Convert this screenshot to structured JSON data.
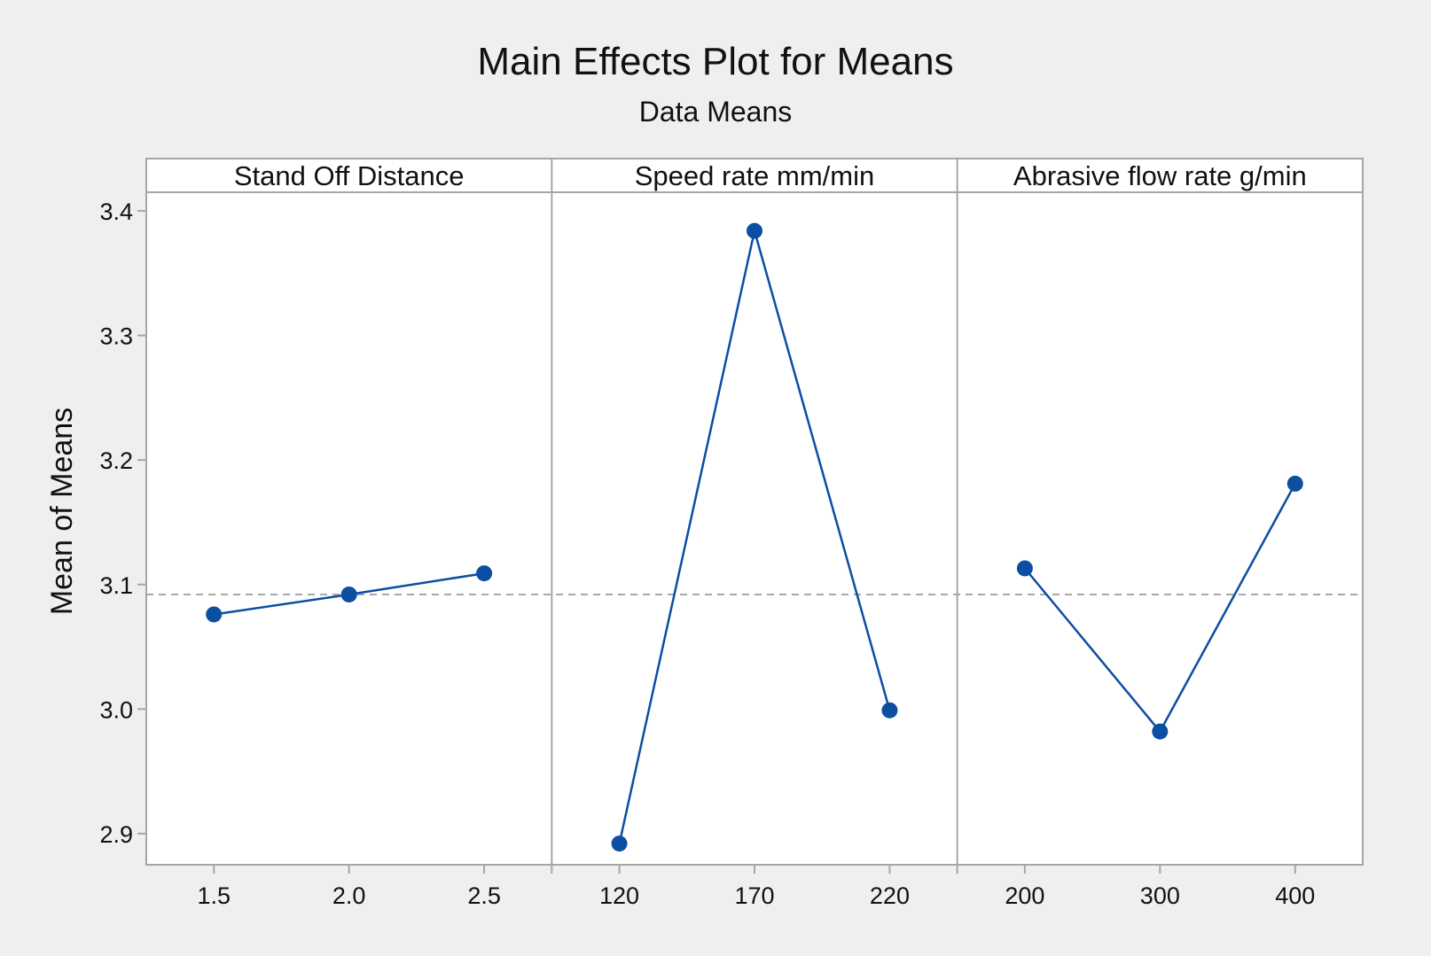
{
  "chart_data": {
    "type": "line",
    "title": "Main Effects Plot for Means",
    "subtitle": "Data Means",
    "ylabel": "Mean of Means",
    "ylim": [
      2.875,
      3.415
    ],
    "y_ticks": [
      "2.9",
      "3.0",
      "3.1",
      "3.2",
      "3.3",
      "3.4"
    ],
    "y_tick_values": [
      2.9,
      3.0,
      3.1,
      3.2,
      3.3,
      3.4
    ],
    "reference_line": 3.092,
    "grid": false,
    "colors": {
      "series": "#0b4ea2",
      "reference": "#a8a8a8",
      "background": "#efefef",
      "plot_area": "#ffffff",
      "frame": "#a6a6a6"
    },
    "panels": [
      {
        "label": "Stand Off Distance",
        "categories": [
          "1.5",
          "2.0",
          "2.5"
        ],
        "values": [
          3.076,
          3.092,
          3.109
        ]
      },
      {
        "label": "Speed rate mm/min",
        "categories": [
          "120",
          "170",
          "220"
        ],
        "values": [
          2.892,
          3.384,
          2.999
        ]
      },
      {
        "label": "Abrasive flow rate g/min",
        "categories": [
          "200",
          "300",
          "400"
        ],
        "values": [
          3.113,
          2.982,
          3.181
        ]
      }
    ]
  }
}
